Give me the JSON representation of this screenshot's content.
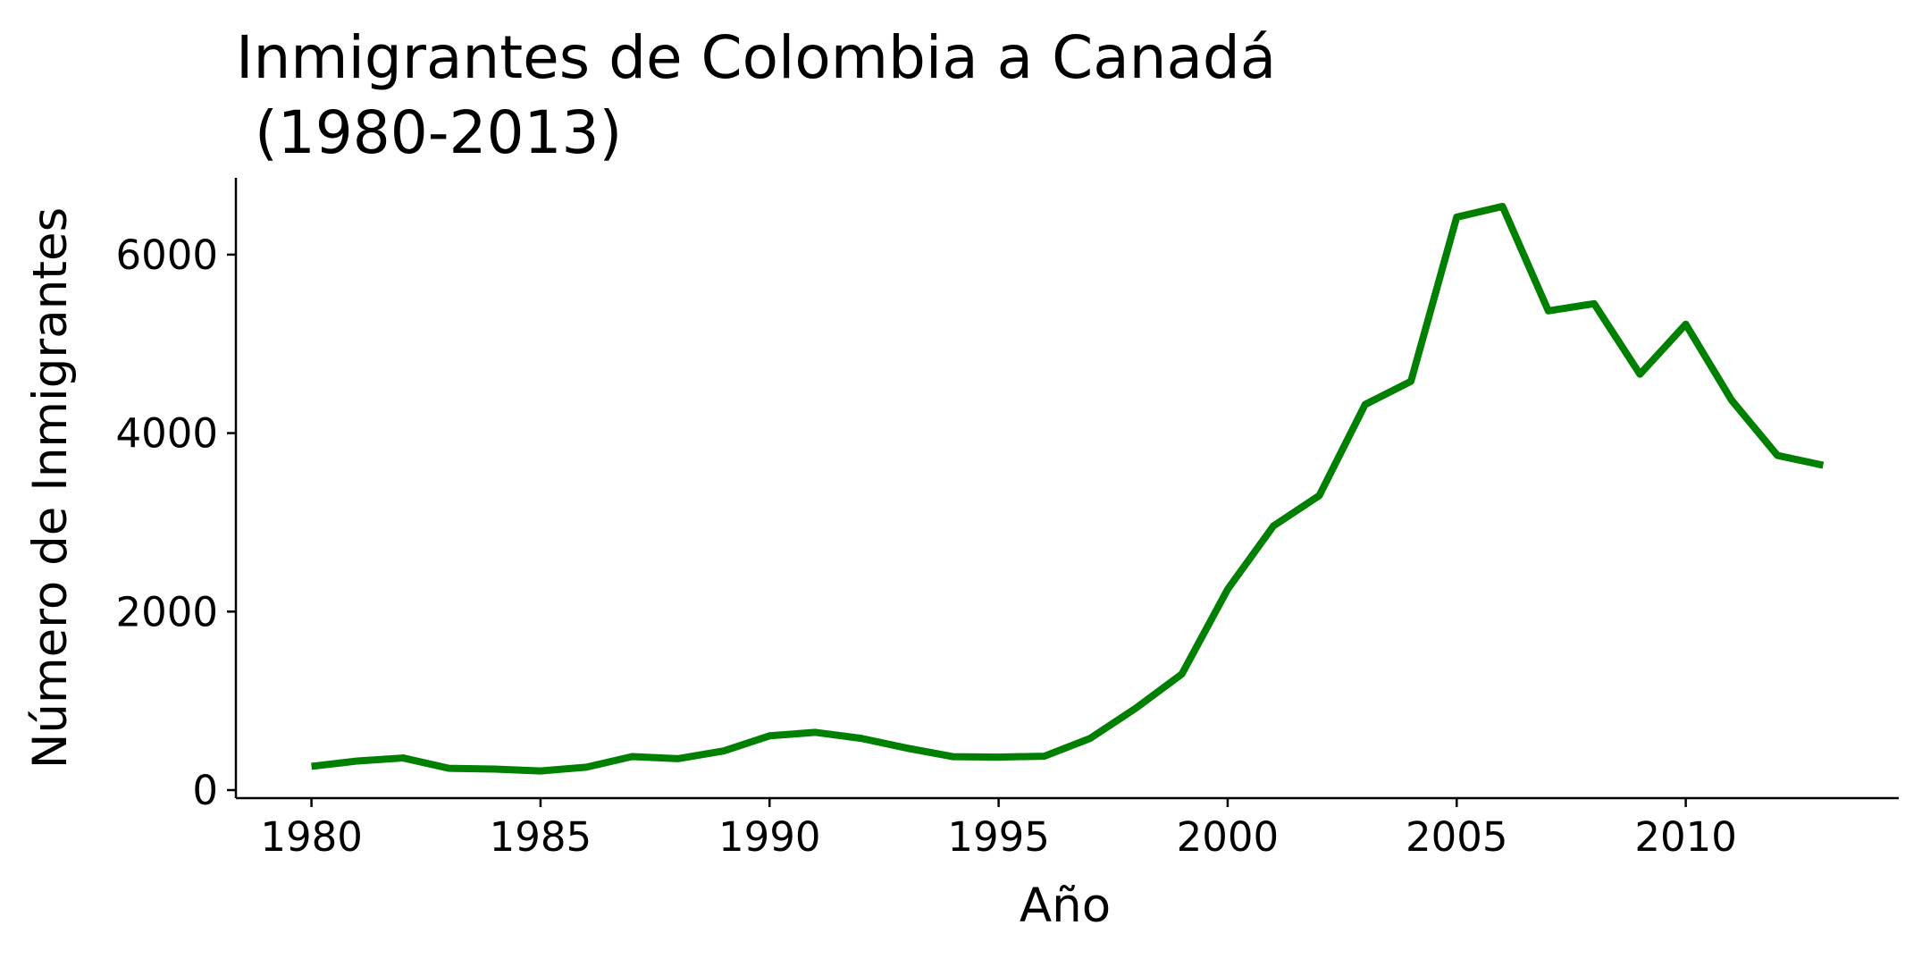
{
  "chart_data": {
    "type": "line",
    "title": "Inmigrantes de Colombia a Canadá\n (1980-2013)",
    "xlabel": "Año",
    "ylabel": "Número de Inmigrantes",
    "x": [
      1980,
      1981,
      1982,
      1983,
      1984,
      1985,
      1986,
      1987,
      1988,
      1989,
      1990,
      1991,
      1992,
      1993,
      1994,
      1995,
      1996,
      1997,
      1998,
      1999,
      2000,
      2001,
      2002,
      2003,
      2004,
      2005,
      2006,
      2007,
      2008,
      2009,
      2010,
      2011,
      2012,
      2013
    ],
    "series": [
      {
        "color": "#008000",
        "values": [
          266,
          326,
          360,
          244,
          235,
          214,
          257,
          376,
          352,
          439,
          608,
          647,
          580,
          470,
          375,
          370,
          380,
          580,
          920,
          1300,
          2250,
          2960,
          3300,
          4320,
          4580,
          6420,
          6540,
          5370,
          5450,
          4660,
          5220,
          4370,
          3750,
          3640
        ]
      }
    ],
    "xticks": [
      "1980",
      "1985",
      "1990",
      "1995",
      "2000",
      "2005",
      "2010"
    ],
    "yticks": [
      "0",
      "2000",
      "4000",
      "6000"
    ],
    "xlim": [
      1978.35,
      2014.65
    ],
    "ylim": [
      -90,
      6860
    ],
    "grid": false,
    "legend": "none"
  }
}
